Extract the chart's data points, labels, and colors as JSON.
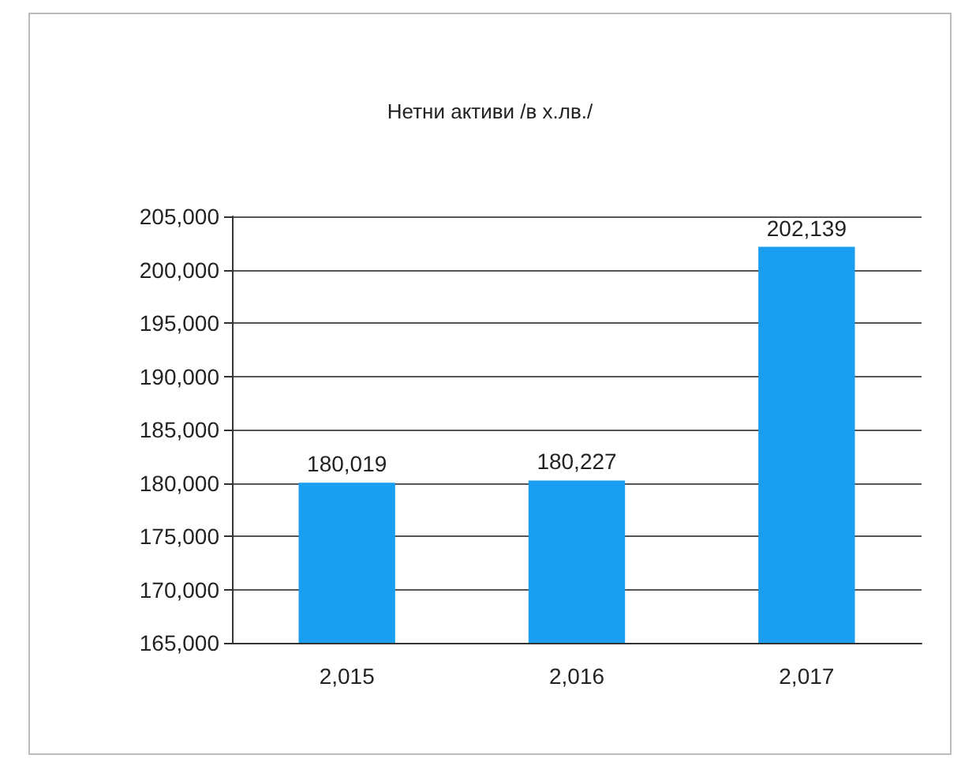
{
  "chart_data": {
    "type": "bar",
    "title": "Нетни активи /в х.лв./",
    "categories": [
      "2,015",
      "2,016",
      "2,017"
    ],
    "values": [
      180019,
      180227,
      202139
    ],
    "value_labels": [
      "180,019",
      "180,227",
      "202,139"
    ],
    "color": "#1a9ff0",
    "ylim": [
      165000,
      205000
    ],
    "yticks": [
      {
        "value": 165000,
        "label": "165,000"
      },
      {
        "value": 170000,
        "label": "170,000"
      },
      {
        "value": 175000,
        "label": "175,000"
      },
      {
        "value": 180000,
        "label": "180,000"
      },
      {
        "value": 185000,
        "label": "185,000"
      },
      {
        "value": 190000,
        "label": "190,000"
      },
      {
        "value": 195000,
        "label": "195,000"
      },
      {
        "value": 200000,
        "label": "200,000"
      },
      {
        "value": 205000,
        "label": "205,000"
      }
    ],
    "grid": "y"
  }
}
